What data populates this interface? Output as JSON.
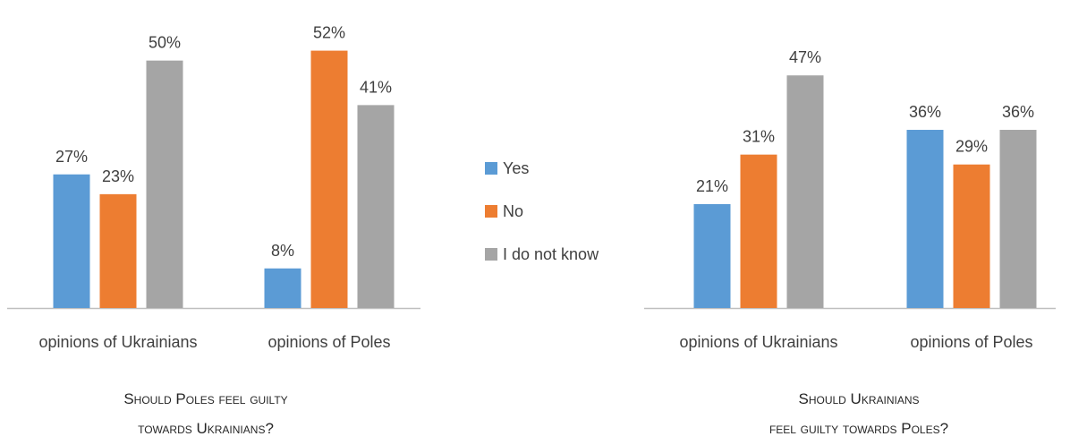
{
  "colors": {
    "yes": "#5b9bd5",
    "no": "#ed7d31",
    "dont_know": "#a5a5a5",
    "axis": "#bfbfbf",
    "text": "#404040"
  },
  "legend": {
    "placement": "center",
    "items": [
      {
        "key": "yes",
        "label": "Yes"
      },
      {
        "key": "no",
        "label": "No"
      },
      {
        "key": "dont_know",
        "label": "I do not know"
      }
    ]
  },
  "chart_data": [
    {
      "type": "bar",
      "title_lines": [
        "Should Poles feel guilty",
        "towards Ukrainians?"
      ],
      "categories": [
        "opinions of Ukrainians",
        "opinions of Poles"
      ],
      "series": [
        {
          "name": "Yes",
          "values": [
            27,
            8
          ]
        },
        {
          "name": "No",
          "values": [
            23,
            52
          ]
        },
        {
          "name": "I do not know",
          "values": [
            50,
            41
          ]
        }
      ],
      "value_labels": [
        [
          "27%",
          "8%"
        ],
        [
          "23%",
          "52%"
        ],
        [
          "50%",
          "41%"
        ]
      ],
      "ylim": [
        0,
        55
      ],
      "grid": false
    },
    {
      "type": "bar",
      "title_lines": [
        "Should Ukrainians",
        "feel guilty towards Poles?"
      ],
      "categories": [
        "opinions of Ukrainians",
        "opinions of Poles"
      ],
      "series": [
        {
          "name": "Yes",
          "values": [
            21,
            36
          ]
        },
        {
          "name": "No",
          "values": [
            31,
            29
          ]
        },
        {
          "name": "I do not know",
          "values": [
            47,
            36
          ]
        }
      ],
      "value_labels": [
        [
          "21%",
          "36%"
        ],
        [
          "31%",
          "29%"
        ],
        [
          "47%",
          "36%"
        ]
      ],
      "ylim": [
        0,
        55
      ],
      "grid": false
    }
  ]
}
